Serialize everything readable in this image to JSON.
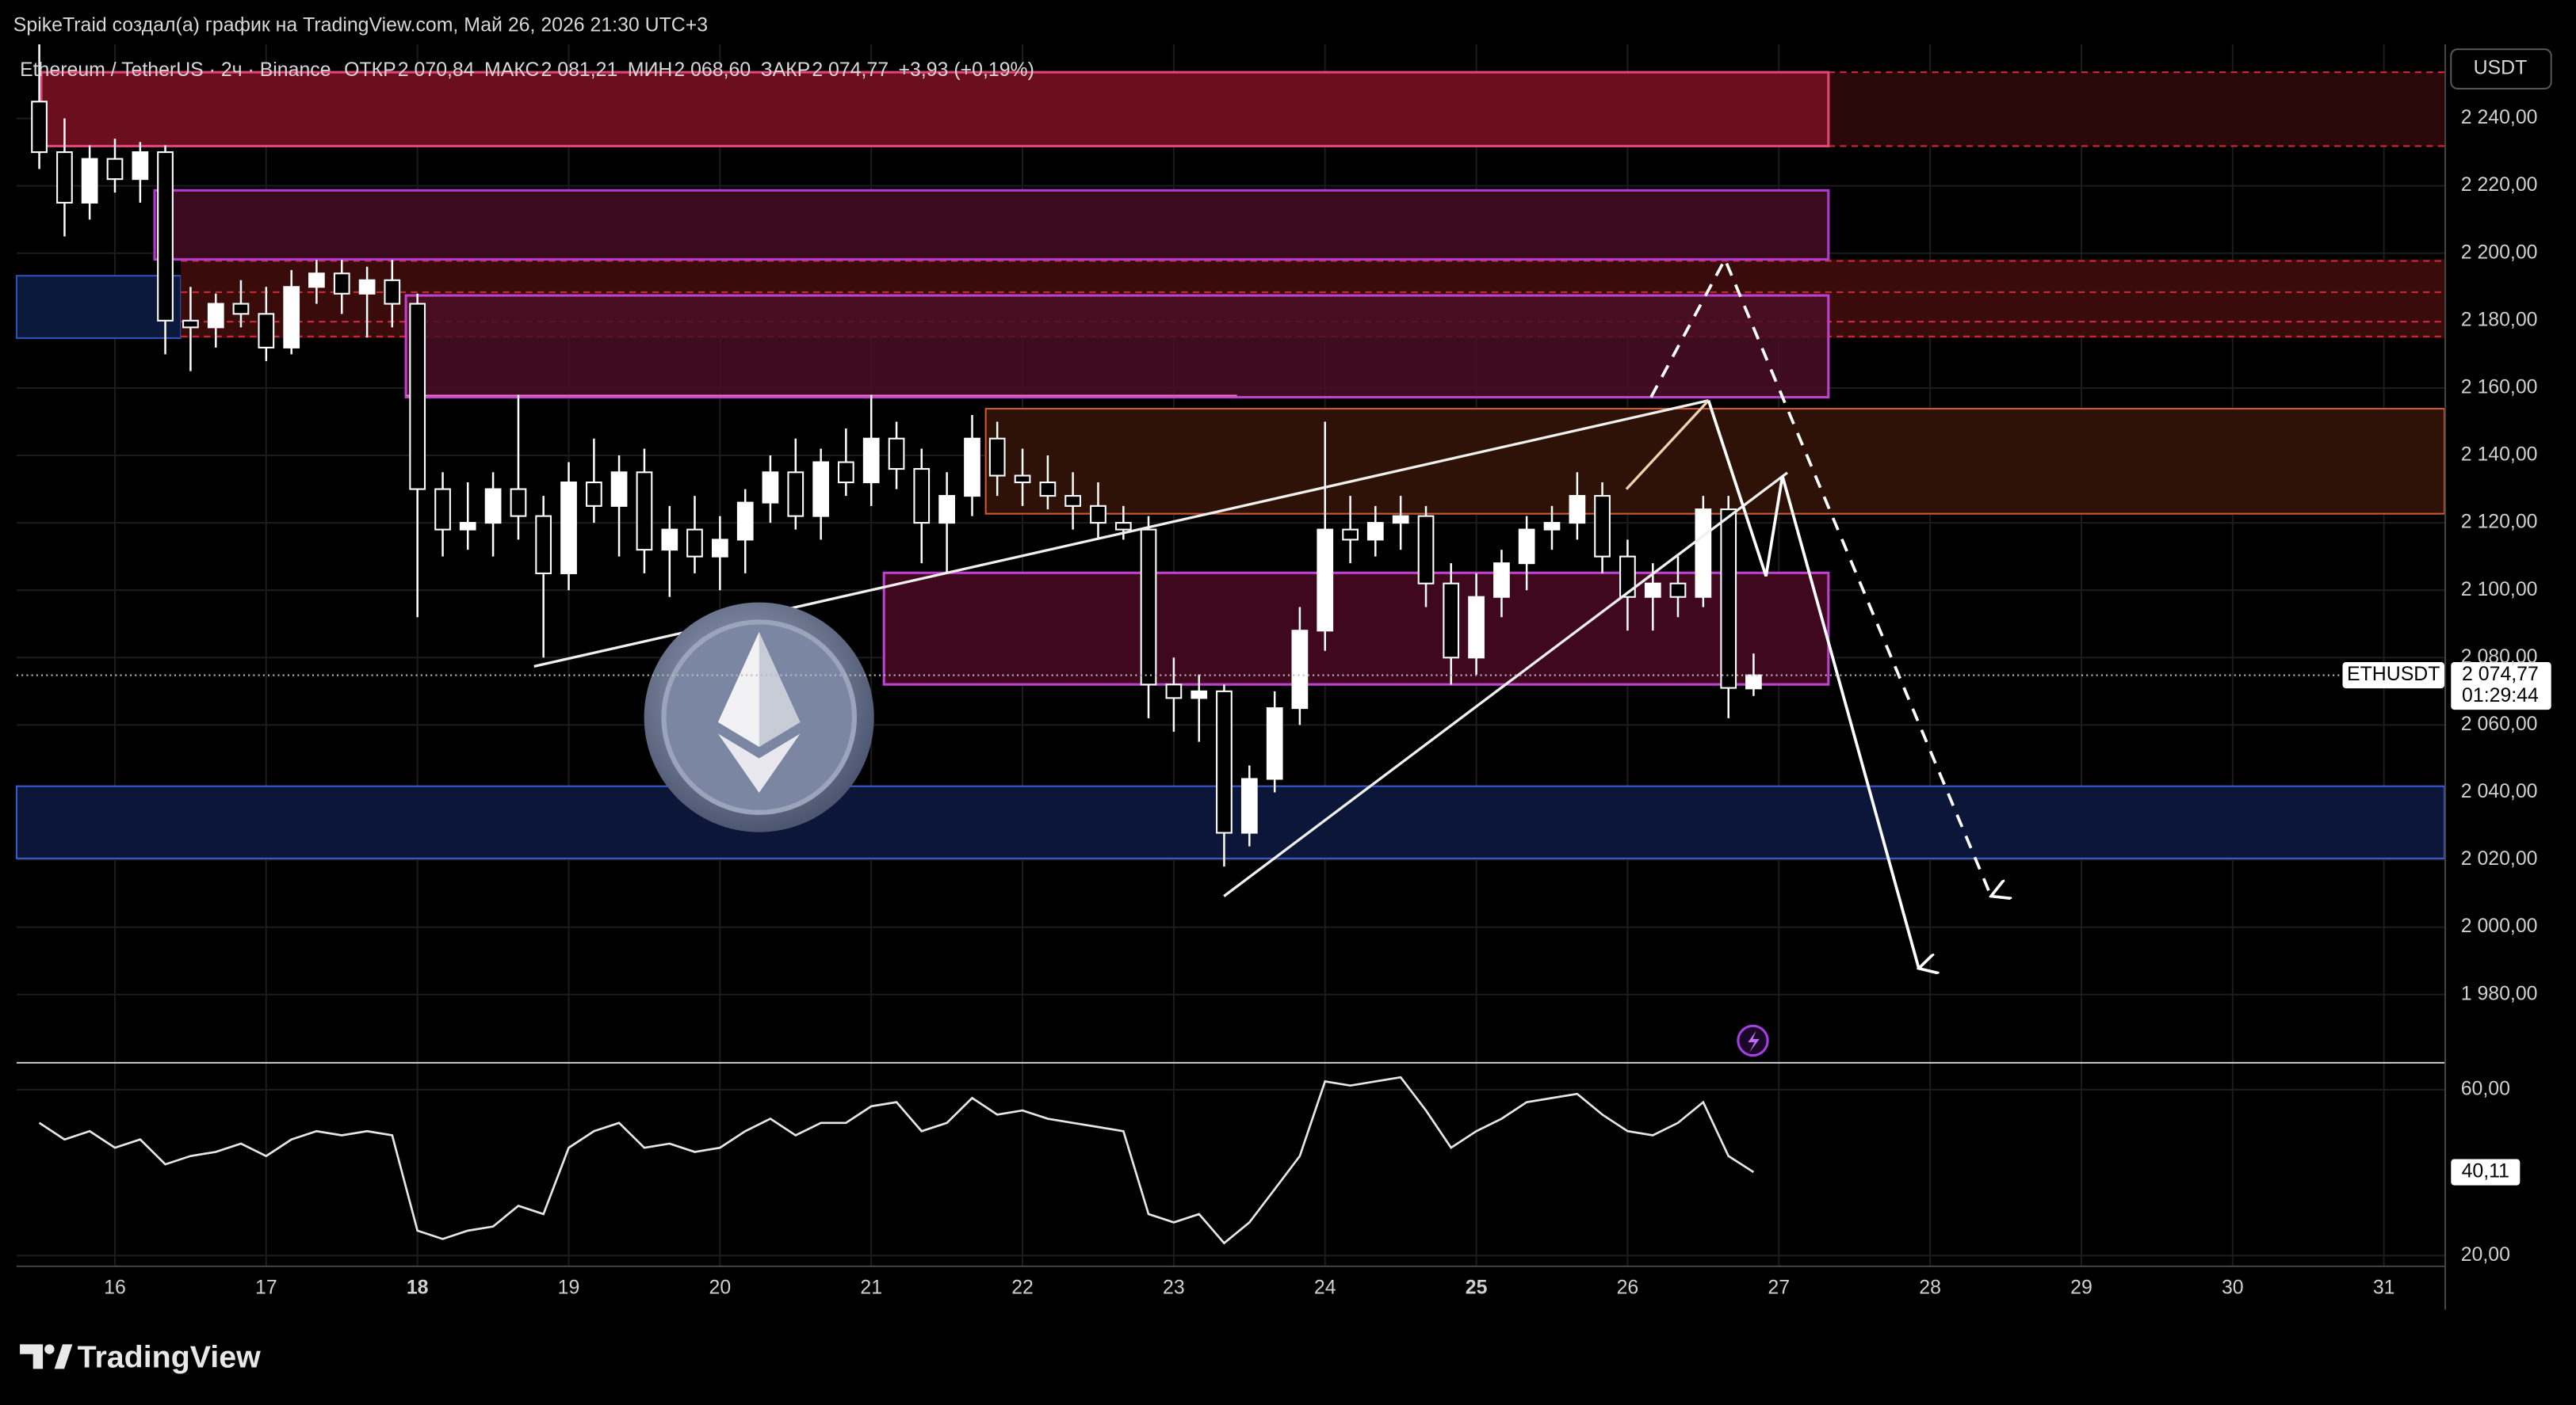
{
  "header": {
    "attribution": "SpikeTraid создал(а) график на TradingView.com, Май 26, 2026 21:30 UTC+3"
  },
  "legend": {
    "symbol": "Ethereum / TetherUS · 2ч · Binance",
    "fields": [
      {
        "label": "ОТКР",
        "value": "2 070,84"
      },
      {
        "label": "МАКС",
        "value": "2 081,21"
      },
      {
        "label": "МИН",
        "value": "2 068,60"
      },
      {
        "label": "ЗАКР",
        "value": "2 074,77"
      }
    ],
    "change": "+3,93 (+0,19%)"
  },
  "currency": "USDT",
  "brand": "TradingView",
  "chart_data": {
    "type": "candlestick",
    "color": "#ffffff",
    "grid": true,
    "x": [
      15.5,
      15.667,
      15.833,
      16,
      16.167,
      16.333,
      16.5,
      16.667,
      16.833,
      17,
      17.167,
      17.333,
      17.5,
      17.667,
      17.833,
      18,
      18.167,
      18.333,
      18.5,
      18.667,
      18.833,
      19,
      19.167,
      19.333,
      19.5,
      19.667,
      19.833,
      20,
      20.167,
      20.333,
      20.5,
      20.667,
      20.833,
      21,
      21.167,
      21.333,
      21.5,
      21.667,
      21.833,
      22,
      22.167,
      22.333,
      22.5,
      22.667,
      22.833,
      23,
      23.167,
      23.333,
      23.5,
      23.667,
      23.833,
      24,
      24.167,
      24.333,
      24.5,
      24.667,
      24.833,
      25,
      25.167,
      25.333,
      25.5,
      25.667,
      25.833,
      26,
      26.167,
      26.333,
      26.5,
      26.667,
      26.833
    ],
    "open": [
      2245,
      2230,
      2215,
      2228,
      2222,
      2230,
      2180,
      2178,
      2185,
      2182,
      2172,
      2190,
      2194,
      2188,
      2192,
      2185,
      2130,
      2118,
      2120,
      2130,
      2122,
      2105,
      2132,
      2125,
      2135,
      2112,
      2118,
      2110,
      2115,
      2126,
      2135,
      2122,
      2138,
      2132,
      2145,
      2136,
      2120,
      2128,
      2145,
      2134,
      2132,
      2128,
      2125,
      2120,
      2118,
      2072,
      2068,
      2070,
      2028,
      2044,
      2065,
      2088,
      2118,
      2115,
      2120,
      2122,
      2102,
      2080,
      2098,
      2108,
      2118,
      2120,
      2128,
      2110,
      2098,
      2102,
      2098,
      2124,
      2070.84
    ],
    "high": [
      2262,
      2240,
      2232,
      2234,
      2233,
      2232,
      2190,
      2188,
      2192,
      2190,
      2195,
      2198,
      2198,
      2196,
      2198,
      2188,
      2135,
      2132,
      2135,
      2158,
      2128,
      2138,
      2145,
      2140,
      2142,
      2125,
      2128,
      2122,
      2130,
      2140,
      2145,
      2142,
      2148,
      2158,
      2150,
      2142,
      2135,
      2152,
      2150,
      2142,
      2140,
      2135,
      2132,
      2125,
      2122,
      2080,
      2075,
      2072,
      2048,
      2070,
      2095,
      2150,
      2128,
      2125,
      2128,
      2125,
      2108,
      2105,
      2112,
      2122,
      2125,
      2135,
      2132,
      2115,
      2108,
      2110,
      2128,
      2128,
      2081.21
    ],
    "low": [
      2225,
      2205,
      2210,
      2218,
      2215,
      2170,
      2165,
      2172,
      2178,
      2168,
      2170,
      2185,
      2182,
      2175,
      2178,
      2092,
      2110,
      2112,
      2110,
      2115,
      2080,
      2100,
      2120,
      2110,
      2105,
      2098,
      2105,
      2100,
      2105,
      2120,
      2118,
      2115,
      2128,
      2125,
      2130,
      2108,
      2105,
      2122,
      2128,
      2125,
      2124,
      2118,
      2115,
      2115,
      2062,
      2058,
      2055,
      2018,
      2024,
      2040,
      2060,
      2082,
      2108,
      2110,
      2112,
      2095,
      2072,
      2075,
      2092,
      2100,
      2112,
      2115,
      2105,
      2088,
      2088,
      2092,
      2095,
      2062,
      2068.6
    ],
    "close": [
      2230,
      2215,
      2228,
      2222,
      2230,
      2180,
      2178,
      2185,
      2182,
      2172,
      2190,
      2194,
      2188,
      2192,
      2185,
      2130,
      2118,
      2120,
      2130,
      2122,
      2105,
      2132,
      2125,
      2135,
      2112,
      2118,
      2110,
      2115,
      2126,
      2135,
      2122,
      2138,
      2132,
      2145,
      2136,
      2120,
      2128,
      2145,
      2134,
      2132,
      2128,
      2125,
      2120,
      2118,
      2072,
      2068,
      2070,
      2028,
      2044,
      2065,
      2088,
      2118,
      2115,
      2120,
      2122,
      2102,
      2080,
      2098,
      2108,
      2118,
      2120,
      2128,
      2110,
      2098,
      2102,
      2098,
      2124,
      2071,
      2074.77
    ],
    "xlim": [
      15.35,
      31.4
    ],
    "xticks": [
      16,
      17,
      18,
      19,
      20,
      21,
      22,
      23,
      24,
      25,
      26,
      27,
      28,
      29,
      30,
      31
    ],
    "bold_xticks": [
      18,
      25
    ],
    "ylim": [
      1960,
      2262
    ],
    "yticks": [
      {
        "value": 1980,
        "label": "1 980,00"
      },
      {
        "value": 2000,
        "label": "2 000,00"
      },
      {
        "value": 2020,
        "label": "2 020,00"
      },
      {
        "value": 2040,
        "label": "2 040,00"
      },
      {
        "value": 2060,
        "label": "2 060,00"
      },
      {
        "value": 2080,
        "label": "2 080,00"
      },
      {
        "value": 2100,
        "label": "2 100,00"
      },
      {
        "value": 2120,
        "label": "2 120,00"
      },
      {
        "value": 2140,
        "label": "2 140,00"
      },
      {
        "value": 2160,
        "label": "2 160,00"
      },
      {
        "value": 2180,
        "label": "2 180,00"
      },
      {
        "value": 2200,
        "label": "2 200,00"
      },
      {
        "value": 2220,
        "label": "2 220,00"
      },
      {
        "value": 2240,
        "label": "2 240,00"
      }
    ],
    "last_price": {
      "value": 2074.77,
      "label": "2 074,77",
      "symbol": "ETHUSDT",
      "countdown": "01:29:44"
    },
    "indicator": {
      "type": "line",
      "color": "#e6e6e6",
      "values": [
        52,
        48,
        50,
        46,
        48,
        42,
        44,
        45,
        47,
        44,
        48,
        50,
        49,
        50,
        49,
        26,
        24,
        26,
        27,
        32,
        30,
        46,
        50,
        52,
        46,
        47,
        45,
        46,
        50,
        53,
        49,
        52,
        52,
        56,
        57,
        50,
        52,
        58,
        54,
        55,
        53,
        52,
        51,
        50,
        30,
        28,
        30,
        23,
        28,
        36,
        44,
        62,
        61,
        62,
        63,
        55,
        46,
        50,
        53,
        57,
        58,
        59,
        54,
        50,
        49,
        52,
        57,
        44,
        40.11
      ],
      "value_labels": [
        null,
        null,
        null,
        null,
        null,
        null,
        null,
        null,
        null,
        null,
        null,
        null,
        null,
        null,
        null,
        null,
        null,
        null,
        null,
        null,
        null,
        null,
        null,
        null,
        null,
        null,
        null,
        null,
        null,
        null,
        null,
        null,
        null,
        null,
        null,
        null,
        null,
        null,
        null,
        null,
        null,
        null,
        null,
        null,
        null,
        null,
        null,
        null,
        null,
        null,
        null,
        null,
        null,
        null,
        null,
        null,
        null,
        null,
        null,
        null,
        null,
        null,
        null,
        null,
        null,
        null,
        null,
        null,
        "40,11"
      ],
      "ylim": [
        17.6,
        66.3
      ],
      "yticks": [
        {
          "value": 20,
          "label": "20,00"
        },
        {
          "value": 60,
          "label": "60,00"
        }
      ]
    }
  }
}
